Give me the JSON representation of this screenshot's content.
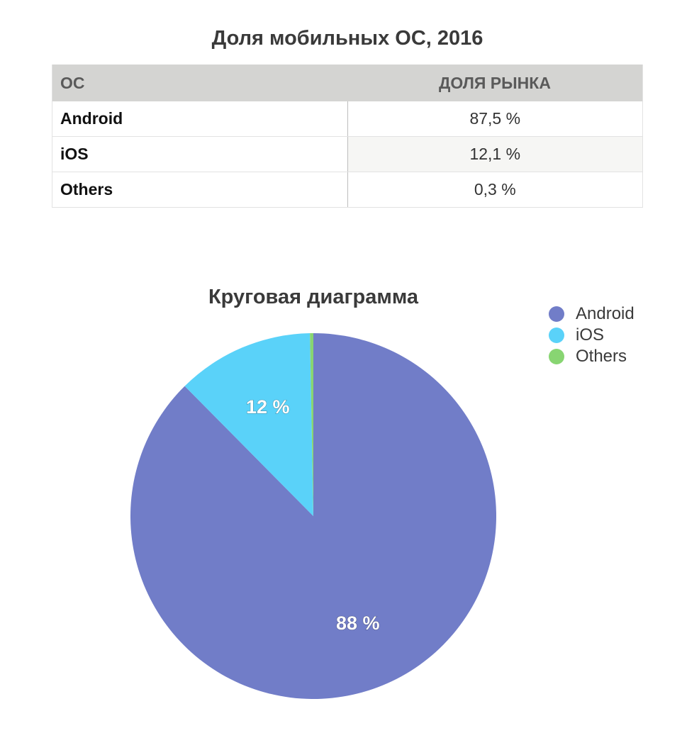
{
  "table": {
    "title": "Доля мобильных ОС, 2016",
    "headers": [
      "ОС",
      "ДОЛЯ РЫНКА"
    ],
    "rows": [
      {
        "os": "Android",
        "share": "87,5 %"
      },
      {
        "os": "iOS",
        "share": "12,1 %"
      },
      {
        "os": "Others",
        "share": "0,3 %"
      }
    ]
  },
  "chart_data": {
    "type": "pie",
    "title": "Круговая диаграмма",
    "categories": [
      "Android",
      "iOS",
      "Others"
    ],
    "values": [
      87.5,
      12.1,
      0.3
    ],
    "slice_labels": [
      "88 %",
      "12 %",
      ""
    ],
    "colors": [
      "#717dc8",
      "#5ad2f9",
      "#88d572"
    ],
    "legend_position": "top-right",
    "start_angle": "12 o'clock",
    "direction": "clockwise"
  }
}
